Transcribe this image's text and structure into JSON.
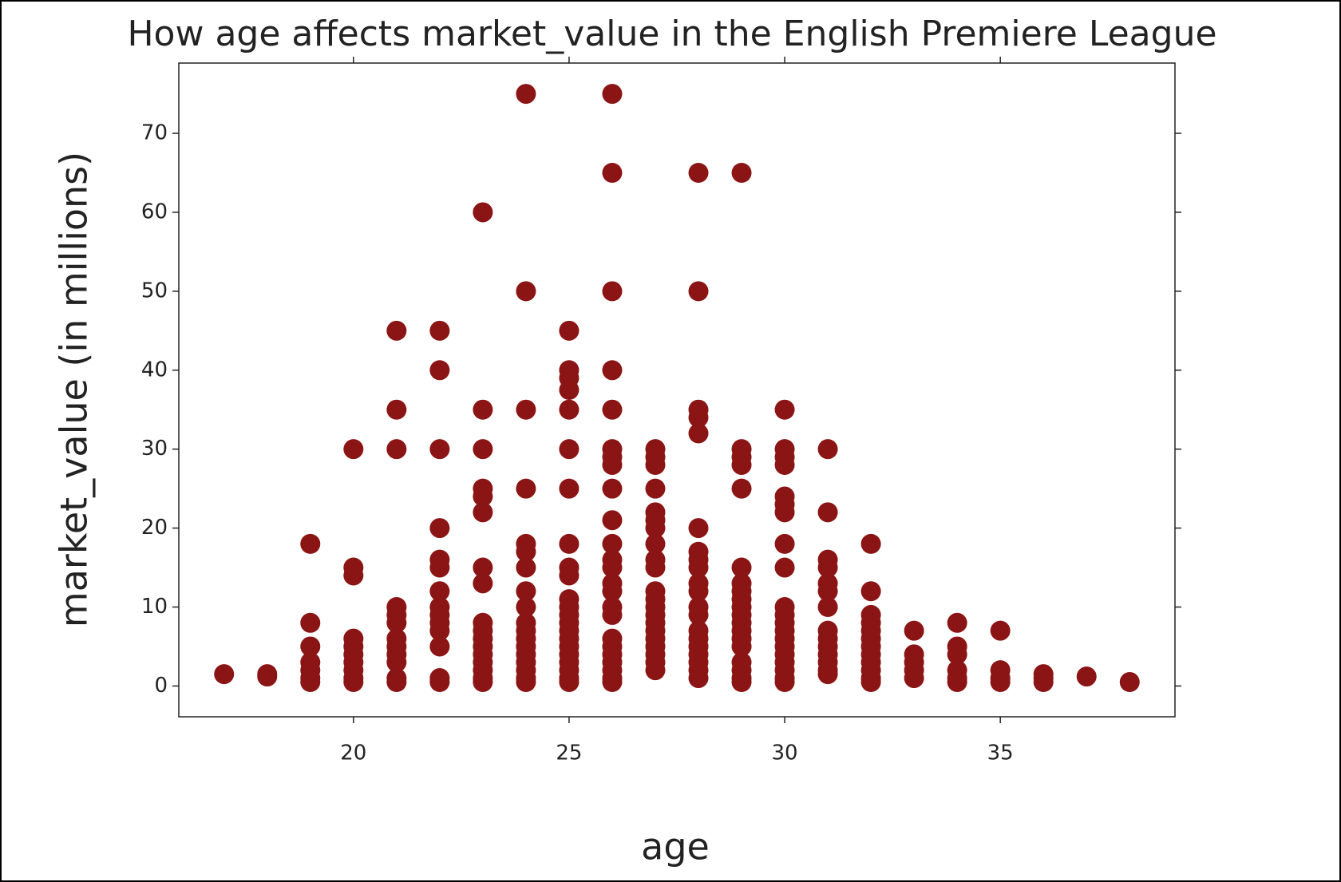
{
  "chart_data": {
    "type": "scatter",
    "title": "How age affects market_value in the English Premiere League",
    "xlabel": "age",
    "ylabel": "market_value (in millions)",
    "color": "#8b1414",
    "xlim": [
      15.95,
      39.05
    ],
    "xticks": [
      20,
      25,
      30,
      35
    ],
    "ylim": [
      -3.9,
      78.9
    ],
    "yticks": [
      0,
      10,
      20,
      30,
      40,
      50,
      60,
      70
    ],
    "x": [
      17,
      18,
      18,
      19,
      19,
      19,
      19,
      19,
      19,
      19,
      20,
      20,
      20,
      20,
      20,
      20,
      20,
      20,
      20,
      20,
      21,
      21,
      21,
      21,
      21,
      21,
      21,
      21,
      21,
      21,
      21,
      21,
      22,
      22,
      22,
      22,
      22,
      22,
      22,
      22,
      22,
      22,
      22,
      22,
      22,
      22,
      23,
      23,
      23,
      23,
      23,
      23,
      23,
      23,
      23,
      23,
      23,
      23,
      23,
      23,
      23,
      23,
      23,
      24,
      24,
      24,
      24,
      24,
      24,
      24,
      24,
      24,
      24,
      24,
      24,
      24,
      24,
      24,
      24,
      24,
      24,
      25,
      25,
      25,
      25,
      25,
      25,
      25,
      25,
      25,
      25,
      25,
      25,
      25,
      25,
      25,
      25,
      25,
      25,
      25,
      25,
      25,
      25,
      26,
      26,
      26,
      26,
      26,
      26,
      26,
      26,
      26,
      26,
      26,
      26,
      26,
      26,
      26,
      26,
      26,
      26,
      26,
      26,
      26,
      26,
      26,
      26,
      27,
      27,
      27,
      27,
      27,
      27,
      27,
      27,
      27,
      27,
      27,
      27,
      27,
      27,
      27,
      27,
      27,
      27,
      27,
      27,
      27,
      28,
      28,
      28,
      28,
      28,
      28,
      28,
      28,
      28,
      28,
      28,
      28,
      28,
      28,
      28,
      28,
      28,
      28,
      28,
      28,
      29,
      29,
      29,
      29,
      29,
      29,
      29,
      29,
      29,
      29,
      29,
      29,
      29,
      29,
      29,
      29,
      29,
      29,
      29,
      30,
      30,
      30,
      30,
      30,
      30,
      30,
      30,
      30,
      30,
      30,
      30,
      30,
      30,
      30,
      30,
      30,
      30,
      30,
      30,
      31,
      31,
      31,
      31,
      31,
      31,
      31,
      31,
      31,
      31,
      31,
      31,
      31,
      31,
      32,
      32,
      32,
      32,
      32,
      32,
      32,
      32,
      32,
      32,
      32,
      32,
      33,
      33,
      33,
      33,
      33,
      34,
      34,
      34,
      34,
      34,
      34,
      35,
      35,
      35,
      35,
      36,
      36,
      36,
      37,
      38
    ],
    "y": [
      1.5,
      1.2,
      1.5,
      18,
      8,
      5,
      3,
      2,
      1,
      0.5,
      30,
      15,
      14,
      6,
      5,
      4,
      3,
      2,
      1,
      0.5,
      45,
      35,
      30,
      10,
      9,
      8,
      6,
      5,
      4,
      3,
      1,
      0.5,
      45,
      40,
      30,
      20,
      16,
      15,
      12,
      10,
      9,
      8,
      7,
      5,
      1,
      0.5,
      60,
      35,
      30,
      25,
      24,
      22,
      15,
      13,
      8,
      7,
      6,
      5,
      4,
      3,
      2,
      1,
      0.5,
      75,
      50,
      35,
      25,
      18,
      17,
      15,
      12,
      10,
      8,
      7,
      6,
      5,
      4,
      3,
      2,
      1,
      0.5,
      45,
      40,
      39,
      37.5,
      35,
      30,
      25,
      18,
      15,
      14,
      11,
      10,
      9,
      8,
      7,
      6,
      5,
      4,
      3,
      2,
      1,
      0.5,
      75,
      65,
      50,
      40,
      35,
      30,
      29,
      28,
      25,
      21,
      18,
      16,
      15,
      13,
      12,
      10,
      9,
      6,
      5,
      4,
      3,
      2,
      1,
      0.5,
      30,
      29,
      28,
      25,
      22,
      21,
      20,
      18,
      16,
      15,
      12,
      11,
      10,
      9,
      8,
      7,
      6,
      5,
      4,
      3,
      2,
      65,
      50,
      35,
      34,
      32,
      20,
      17,
      16,
      15,
      13,
      12,
      10,
      9,
      7,
      6,
      5,
      4,
      3,
      2,
      1,
      65,
      30,
      29,
      28,
      25,
      15,
      13,
      12,
      11,
      10,
      9,
      8,
      7,
      6,
      5,
      3,
      2,
      1,
      0.5,
      35,
      30,
      29,
      28,
      24,
      23,
      22,
      18,
      15,
      10,
      9,
      8,
      7,
      6,
      5,
      4,
      3,
      2,
      1,
      0.5,
      30,
      22,
      16,
      15,
      13,
      12,
      10,
      7,
      6,
      5,
      4,
      3,
      2,
      1.5,
      18,
      12,
      9,
      8,
      7,
      6,
      5,
      4,
      3,
      2,
      1,
      0.5,
      7,
      4,
      3,
      2,
      1,
      8,
      5,
      4,
      2,
      1,
      0.5,
      7,
      2,
      1,
      0.5,
      1.5,
      1,
      0.5,
      1.2,
      0.5
    ]
  }
}
